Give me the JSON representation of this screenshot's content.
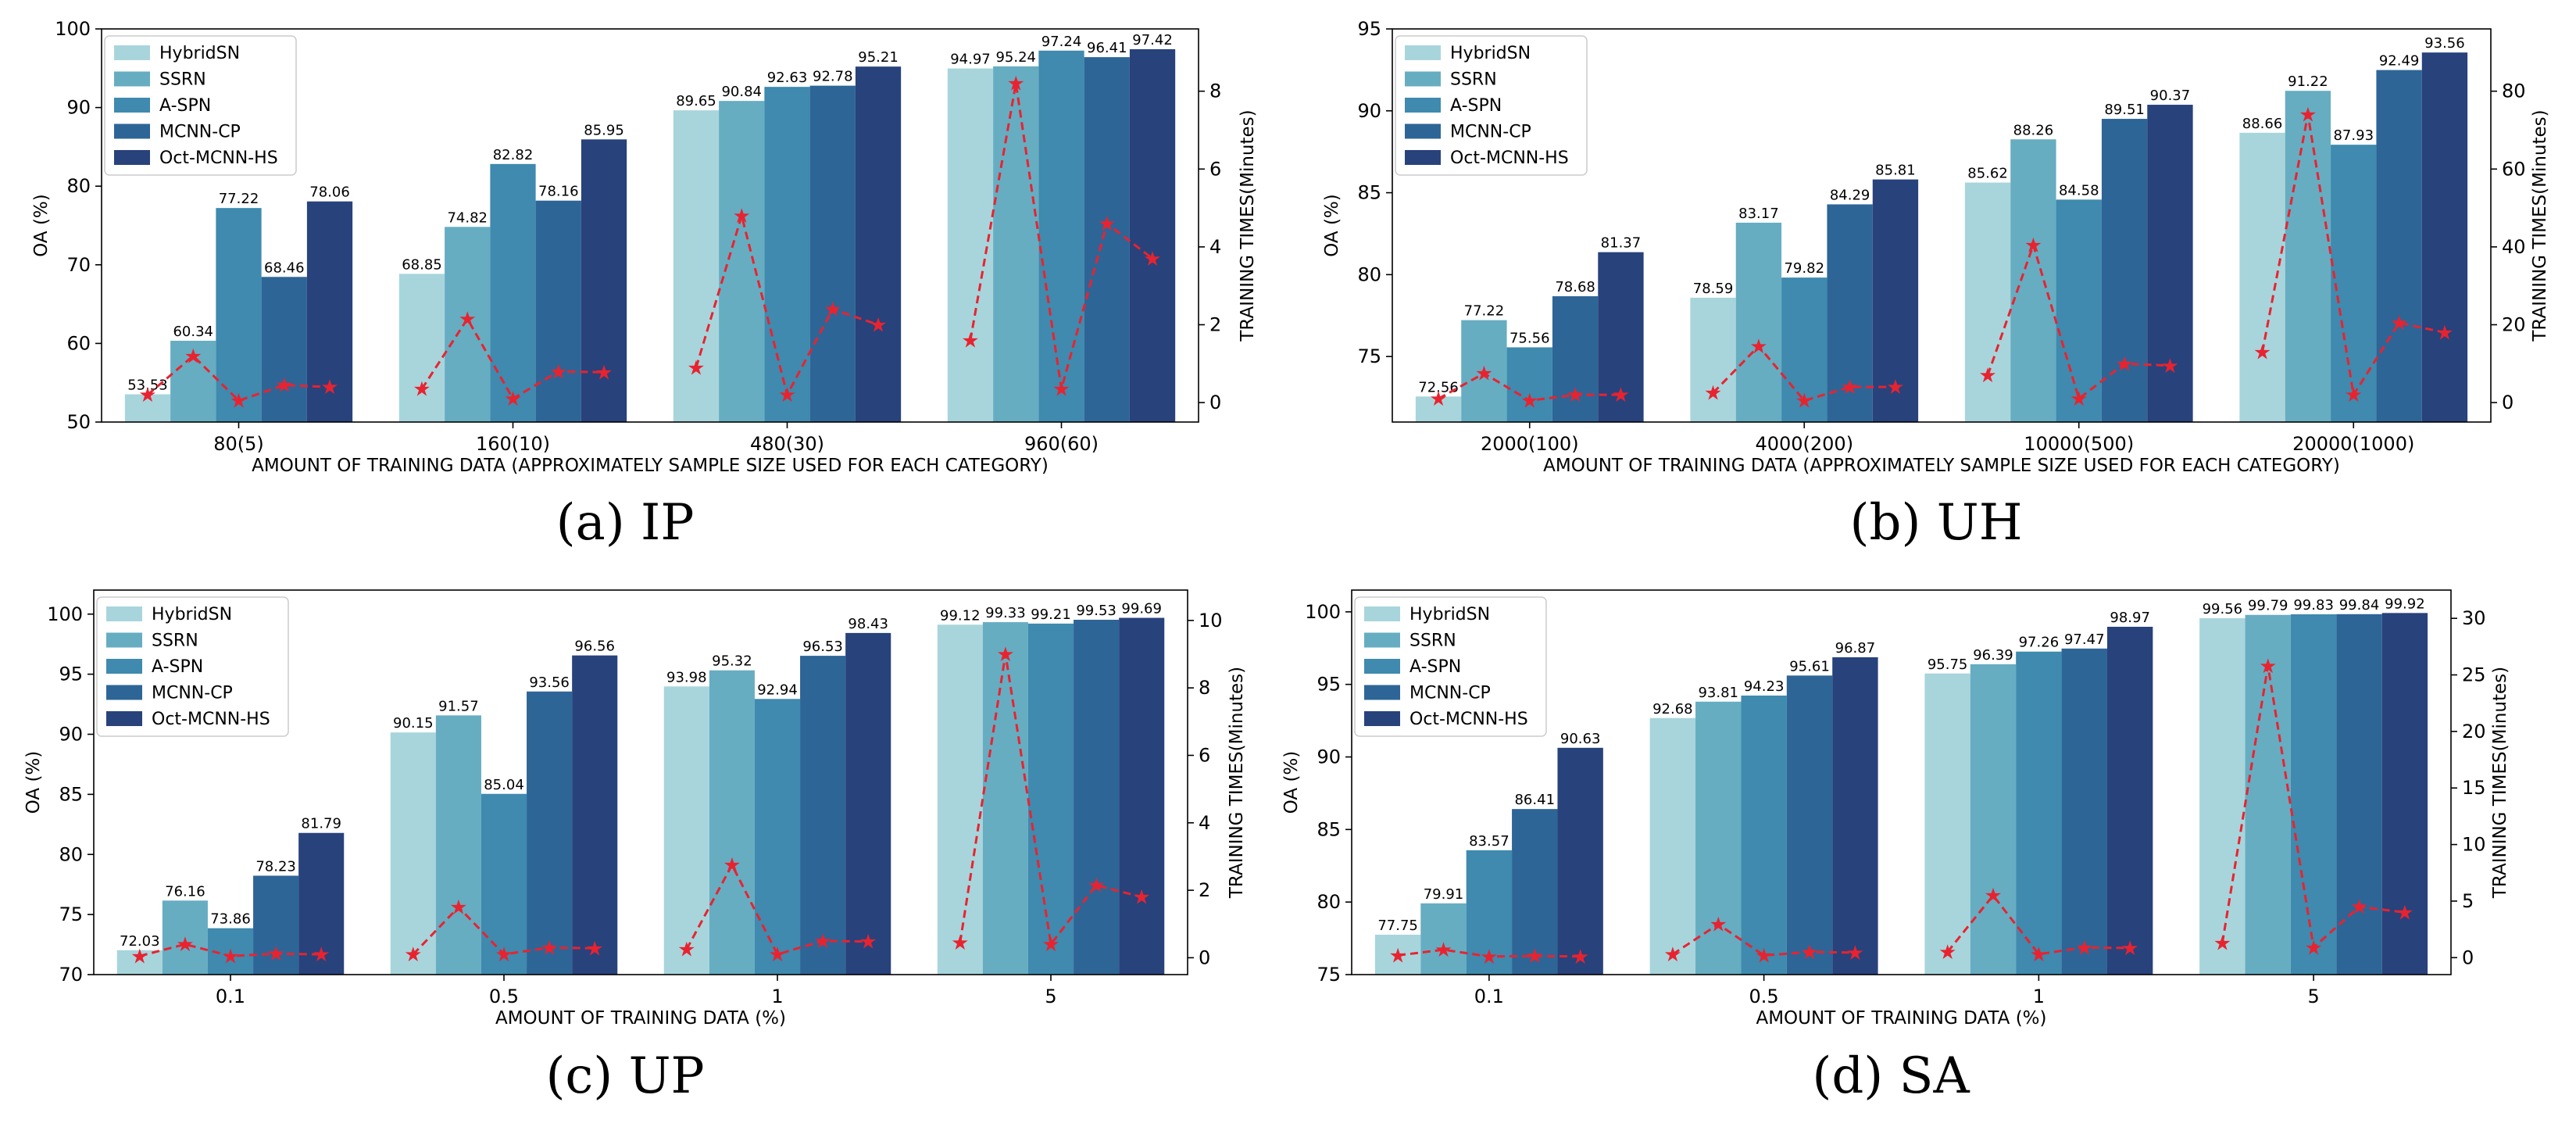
{
  "chart_data": [
    {
      "panel": "a",
      "type": "bar",
      "caption": "(a)  IP",
      "categories": [
        "80(5)",
        "160(10)",
        "480(30)",
        "960(60)"
      ],
      "xlabel": "AMOUNT OF TRAINING DATA (APPROXIMATELY SAMPLE SIZE USED FOR EACH CATEGORY)",
      "ylabel": "OA (%)",
      "ylim": [
        50,
        100
      ],
      "yticks": [
        50,
        60,
        70,
        80,
        90,
        100
      ],
      "y2label": "TRAINING TIMES(Minutes)",
      "y2lim": [
        -0.5,
        9.6
      ],
      "y2ticks": [
        0,
        2,
        4,
        6,
        8
      ],
      "series": [
        {
          "name": "HybridSN",
          "color": "#a8d5dc",
          "values": [
            53.53,
            68.85,
            89.65,
            94.97
          ],
          "labels": [
            "53.53",
            "68.85",
            "89.65",
            "94.97"
          ]
        },
        {
          "name": "SSRN",
          "color": "#66adc2",
          "values": [
            60.34,
            74.82,
            90.84,
            95.24
          ],
          "labels": [
            "60.34",
            "74.82",
            "90.84",
            "95.24"
          ]
        },
        {
          "name": "A-SPN",
          "color": "#3f8aae",
          "values": [
            77.22,
            82.82,
            92.63,
            97.24
          ],
          "labels": [
            "77.22",
            "82.82",
            "92.63",
            "97.24"
          ]
        },
        {
          "name": "MCNN-CP",
          "color": "#2e6597",
          "values": [
            68.46,
            78.16,
            92.78,
            96.41
          ],
          "labels": [
            "68.46",
            "78.16",
            "92.78",
            "96.41"
          ]
        },
        {
          "name": "Oct-MCNN-HS",
          "color": "#28427c",
          "values": [
            78.06,
            85.95,
            95.21,
            97.42
          ],
          "labels": [
            "78.06",
            "85.95",
            "95.21",
            "97.42"
          ]
        }
      ],
      "training_times": [
        [
          0.2,
          1.2,
          0.05,
          0.45,
          0.4
        ],
        [
          0.35,
          2.15,
          0.1,
          0.8,
          0.78
        ],
        [
          0.9,
          4.8,
          0.2,
          2.4,
          2.0
        ],
        [
          1.6,
          8.2,
          0.35,
          4.6,
          3.7
        ]
      ]
    },
    {
      "panel": "b",
      "type": "bar",
      "caption": "(b)  UH",
      "categories": [
        "2000(100)",
        "4000(200)",
        "10000(500)",
        "20000(1000)"
      ],
      "xlabel": "AMOUNT OF TRAINING DATA (APPROXIMATELY SAMPLE SIZE USED FOR EACH CATEGORY)",
      "ylabel": "OA (%)",
      "ylim": [
        71,
        95
      ],
      "yticks": [
        75,
        80,
        85,
        90,
        95
      ],
      "y2label": "TRAINING TIMES(Minutes)",
      "y2lim": [
        -5,
        96
      ],
      "y2ticks": [
        0,
        20,
        40,
        60,
        80
      ],
      "series": [
        {
          "name": "HybridSN",
          "color": "#a8d5dc",
          "values": [
            72.56,
            78.59,
            85.62,
            88.66
          ],
          "labels": [
            "72.56",
            "78.59",
            "85.62",
            "88.66"
          ]
        },
        {
          "name": "SSRN",
          "color": "#66adc2",
          "values": [
            77.22,
            83.17,
            88.26,
            91.22
          ],
          "labels": [
            "77.22",
            "83.17",
            "88.26",
            "91.22"
          ]
        },
        {
          "name": "A-SPN",
          "color": "#3f8aae",
          "values": [
            75.56,
            79.82,
            84.58,
            87.93
          ],
          "labels": [
            "75.56",
            "79.82",
            "84.58",
            "87.93"
          ]
        },
        {
          "name": "MCNN-CP",
          "color": "#2e6597",
          "values": [
            78.68,
            84.29,
            89.51,
            92.49
          ],
          "labels": [
            "78.68",
            "84.29",
            "89.51",
            "92.49"
          ]
        },
        {
          "name": "Oct-MCNN-HS",
          "color": "#28427c",
          "values": [
            81.37,
            85.81,
            90.37,
            93.56
          ],
          "labels": [
            "81.37",
            "85.81",
            "90.37",
            "93.56"
          ]
        }
      ],
      "training_times": [
        [
          1,
          7.5,
          0.5,
          2,
          2
        ],
        [
          2.5,
          14.5,
          0.5,
          4,
          4
        ],
        [
          7,
          40.5,
          1,
          10,
          9.5
        ],
        [
          13,
          74,
          2,
          20.5,
          18
        ]
      ]
    },
    {
      "panel": "c",
      "type": "bar",
      "caption": "(c)  UP",
      "categories": [
        "0.1",
        "0.5",
        "1",
        "5"
      ],
      "xlabel": "AMOUNT OF TRAINING DATA (%)",
      "ylabel": "OA (%)",
      "ylim": [
        70,
        102
      ],
      "yticks": [
        70,
        75,
        80,
        85,
        90,
        95,
        100
      ],
      "y2label": "TRAINING TIMES(Minutes)",
      "y2lim": [
        -0.5,
        10.9
      ],
      "y2ticks": [
        0,
        2,
        4,
        6,
        8,
        10
      ],
      "series": [
        {
          "name": "HybridSN",
          "color": "#a8d5dc",
          "values": [
            72.03,
            90.15,
            93.98,
            99.12
          ],
          "labels": [
            "72.03",
            "90.15",
            "93.98",
            "99.12"
          ]
        },
        {
          "name": "SSRN",
          "color": "#66adc2",
          "values": [
            76.16,
            91.57,
            95.32,
            99.33
          ],
          "labels": [
            "76.16",
            "91.57",
            "95.32",
            "99.33"
          ]
        },
        {
          "name": "A-SPN",
          "color": "#3f8aae",
          "values": [
            73.86,
            85.04,
            92.94,
            99.21
          ],
          "labels": [
            "73.86",
            "85.04",
            "92.94",
            "99.21"
          ]
        },
        {
          "name": "MCNN-CP",
          "color": "#2e6597",
          "values": [
            78.23,
            93.56,
            96.53,
            99.53
          ],
          "labels": [
            "78.23",
            "93.56",
            "96.53",
            "99.53"
          ]
        },
        {
          "name": "Oct-MCNN-HS",
          "color": "#28427c",
          "values": [
            81.79,
            96.56,
            98.43,
            99.69
          ],
          "labels": [
            "81.79",
            "96.56",
            "98.43",
            "99.69"
          ]
        }
      ],
      "training_times": [
        [
          0.05,
          0.4,
          0.05,
          0.12,
          0.1
        ],
        [
          0.1,
          1.5,
          0.1,
          0.3,
          0.28
        ],
        [
          0.25,
          2.75,
          0.1,
          0.5,
          0.48
        ],
        [
          0.45,
          9.0,
          0.4,
          2.15,
          1.8
        ]
      ]
    },
    {
      "panel": "d",
      "type": "bar",
      "caption": "(d)  SA",
      "categories": [
        "0.1",
        "0.5",
        "1",
        "5"
      ],
      "xlabel": "AMOUNT OF TRAINING DATA (%)",
      "ylabel": "OA (%)",
      "ylim": [
        75,
        101.5
      ],
      "yticks": [
        75,
        80,
        85,
        90,
        95,
        100
      ],
      "y2label": "TRAINING TIMES(Minutes)",
      "y2lim": [
        -1.5,
        32.5
      ],
      "y2ticks": [
        0,
        5,
        10,
        15,
        20,
        25,
        30
      ],
      "series": [
        {
          "name": "HybridSN",
          "color": "#a8d5dc",
          "values": [
            77.75,
            92.68,
            95.75,
            99.56
          ],
          "labels": [
            "77.75",
            "92.68",
            "95.75",
            "99.56"
          ]
        },
        {
          "name": "SSRN",
          "color": "#66adc2",
          "values": [
            79.91,
            93.81,
            96.39,
            99.79
          ],
          "labels": [
            "79.91",
            "93.81",
            "96.39",
            "99.79"
          ]
        },
        {
          "name": "A-SPN",
          "color": "#3f8aae",
          "values": [
            83.57,
            94.23,
            97.26,
            99.83
          ],
          "labels": [
            "83.57",
            "94.23",
            "97.26",
            "99.83"
          ]
        },
        {
          "name": "MCNN-CP",
          "color": "#2e6597",
          "values": [
            86.41,
            95.61,
            97.47,
            99.84
          ],
          "labels": [
            "86.41",
            "95.61",
            "97.47",
            "99.84"
          ]
        },
        {
          "name": "Oct-MCNN-HS",
          "color": "#28427c",
          "values": [
            90.63,
            96.87,
            98.97,
            99.92
          ],
          "labels": [
            "90.63",
            "96.87",
            "98.97",
            "99.92"
          ]
        }
      ],
      "training_times": [
        [
          0.2,
          0.7,
          0.1,
          0.15,
          0.1
        ],
        [
          0.3,
          2.95,
          0.2,
          0.5,
          0.45
        ],
        [
          0.5,
          5.5,
          0.3,
          0.9,
          0.85
        ],
        [
          1.3,
          25.8,
          0.9,
          4.5,
          4.0
        ]
      ]
    }
  ],
  "line_color": "#e8232f"
}
